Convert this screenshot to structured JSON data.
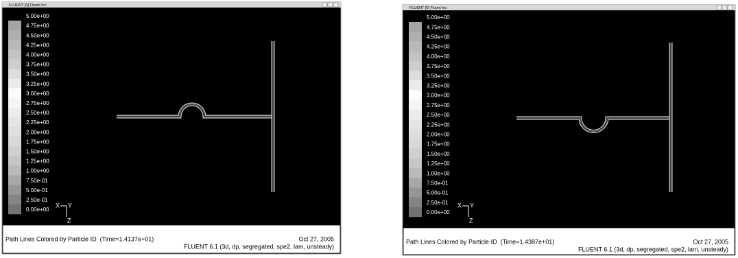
{
  "windows": [
    {
      "title": "FLUENT [0] Fluent Inc",
      "colorbar": [
        "5.00e+00",
        "4.75e+00",
        "4.50e+00",
        "4.25e+00",
        "4.00e+00",
        "3.75e+00",
        "3.50e+00",
        "3.25e+00",
        "3.00e+00",
        "2.75e+00",
        "2.50e+00",
        "2.25e+00",
        "2.00e+00",
        "1.75e+00",
        "1.50e+00",
        "1.25e+00",
        "1.00e+00",
        "7.50e-01",
        "5.00e-01",
        "2.50e-01",
        "0.00e+00"
      ],
      "axes": {
        "x": "X",
        "y": "Y",
        "z": "Z"
      },
      "footer": {
        "caption": "Path Lines Colored by Particle ID  (Time=1.4137e+01)",
        "date": "Oct 27, 2005",
        "version": "FLUENT 6.1 (3d, dp, segregated, spe2, lam, unsteady)"
      }
    },
    {
      "title": "FLUENT [0] Fluent Inc",
      "colorbar": [
        "5.00e+00",
        "4.75e+00",
        "4.50e+00",
        "4.25e+00",
        "4.00e+00",
        "3.75e+00",
        "3.50e+00",
        "3.25e+00",
        "3.00e+00",
        "2.75e+00",
        "2.50e+00",
        "2.25e+00",
        "2.00e+00",
        "1.75e+00",
        "1.50e+00",
        "1.25e+00",
        "1.00e+00",
        "7.50e-01",
        "5.00e-01",
        "2.50e-01",
        "0.00e+00"
      ],
      "axes": {
        "x": "X",
        "y": "Y",
        "z": "Z"
      },
      "footer": {
        "caption": "Path Lines Colored by Particle ID  (Time=1.4387e+01)",
        "date": "Oct 27, 2005",
        "version": "FLUENT 6.1 (3d, dp, segregated, spe2, lam, unsteady)"
      }
    }
  ]
}
